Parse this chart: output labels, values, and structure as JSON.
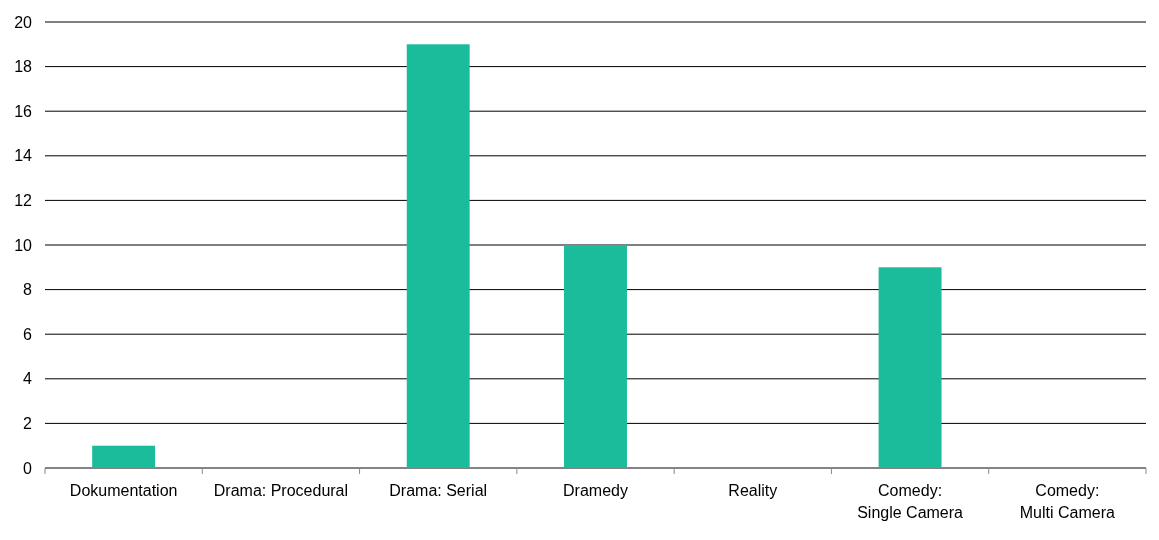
{
  "chart_data": {
    "type": "bar",
    "categories": [
      "Dokumentation",
      "Drama: Procedural",
      "Drama: Serial",
      "Dramedy",
      "Reality",
      "Comedy: Single Camera",
      "Comedy: Multi Camera"
    ],
    "values": [
      1,
      0,
      19,
      10,
      0,
      9,
      0
    ],
    "color": "#1bbc9b",
    "ylim": [
      0,
      20
    ],
    "yticks": [
      0,
      2,
      4,
      6,
      8,
      10,
      12,
      14,
      16,
      18,
      20
    ],
    "grid": "y"
  }
}
